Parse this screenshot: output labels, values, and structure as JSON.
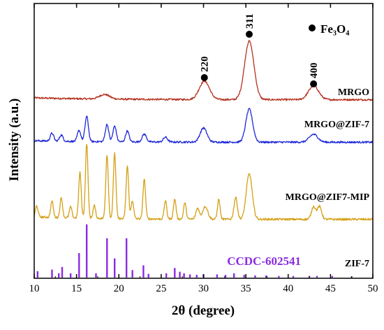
{
  "chart_data": {
    "type": "line",
    "xlabel": "2θ (degree)",
    "ylabel": "Intensity (a.u.)",
    "xlim": [
      10,
      50
    ],
    "x_ticks": [
      "10",
      "15",
      "20",
      "25",
      "30",
      "35",
      "40",
      "45",
      "50"
    ],
    "legend_marker_label": "Fe₃O₄",
    "peak_markers": [
      {
        "x": 30.1,
        "label": "220"
      },
      {
        "x": 35.4,
        "label": "311"
      },
      {
        "x": 43.0,
        "label": "400"
      }
    ],
    "series": [
      {
        "name": "MRGO",
        "color": "#b5311f",
        "baseline": 0.1,
        "peaks": [
          [
            18.3,
            0.15,
            0.6
          ],
          [
            30.1,
            0.6,
            0.6
          ],
          [
            35.4,
            1.9,
            0.55
          ],
          [
            43.0,
            0.45,
            0.6
          ]
        ]
      },
      {
        "name": "MRGO@ZIF-7",
        "color": "#1e28d8",
        "baseline": 0.08,
        "peaks": [
          [
            12.1,
            0.25,
            0.2
          ],
          [
            13.2,
            0.2,
            0.2
          ],
          [
            15.3,
            0.35,
            0.2
          ],
          [
            16.2,
            0.8,
            0.2
          ],
          [
            18.6,
            0.55,
            0.2
          ],
          [
            19.5,
            0.5,
            0.2
          ],
          [
            21.0,
            0.35,
            0.2
          ],
          [
            23.0,
            0.25,
            0.25
          ],
          [
            25.5,
            0.15,
            0.25
          ],
          [
            30.0,
            0.45,
            0.4
          ],
          [
            35.4,
            1.05,
            0.4
          ],
          [
            43.0,
            0.25,
            0.5
          ]
        ]
      },
      {
        "name": "MRGO@ZIF7-MIP",
        "color": "#d4a017",
        "baseline": 0.12,
        "peaks": [
          [
            10.3,
            0.3,
            0.15
          ],
          [
            12.1,
            0.45,
            0.15
          ],
          [
            13.2,
            0.55,
            0.15
          ],
          [
            14.3,
            0.3,
            0.15
          ],
          [
            15.4,
            1.25,
            0.15
          ],
          [
            16.2,
            2.05,
            0.15
          ],
          [
            17.1,
            0.35,
            0.15
          ],
          [
            18.6,
            1.75,
            0.15
          ],
          [
            19.5,
            1.8,
            0.15
          ],
          [
            21.0,
            1.45,
            0.15
          ],
          [
            21.6,
            0.5,
            0.15
          ],
          [
            23.0,
            1.1,
            0.15
          ],
          [
            25.5,
            0.5,
            0.15
          ],
          [
            26.6,
            0.55,
            0.15
          ],
          [
            27.8,
            0.45,
            0.15
          ],
          [
            29.3,
            0.3,
            0.2
          ],
          [
            30.2,
            0.35,
            0.3
          ],
          [
            31.8,
            0.55,
            0.15
          ],
          [
            33.8,
            0.6,
            0.2
          ],
          [
            35.4,
            1.25,
            0.35
          ],
          [
            43.0,
            0.35,
            0.25
          ],
          [
            43.7,
            0.35,
            0.25
          ]
        ]
      },
      {
        "name": "ZIF-7",
        "color": "#8a2be2",
        "reference_label": "CCDC-602541",
        "sticks": [
          [
            10.4,
            0.12
          ],
          [
            12.1,
            0.15
          ],
          [
            12.9,
            0.08
          ],
          [
            13.3,
            0.2
          ],
          [
            14.3,
            0.08
          ],
          [
            15.3,
            0.46
          ],
          [
            16.2,
            1.0
          ],
          [
            17.3,
            0.08
          ],
          [
            18.6,
            0.74
          ],
          [
            19.5,
            0.36
          ],
          [
            20.9,
            0.74
          ],
          [
            21.6,
            0.14
          ],
          [
            22.9,
            0.23
          ],
          [
            23.5,
            0.07
          ],
          [
            25.6,
            0.08
          ],
          [
            26.6,
            0.18
          ],
          [
            27.2,
            0.11
          ],
          [
            27.7,
            0.08
          ],
          [
            28.4,
            0.06
          ],
          [
            29.2,
            0.05
          ],
          [
            30.0,
            0.06
          ],
          [
            31.6,
            0.06
          ],
          [
            32.6,
            0.05
          ],
          [
            33.6,
            0.08
          ],
          [
            34.8,
            0.05
          ],
          [
            36.1,
            0.04
          ],
          [
            37.4,
            0.04
          ],
          [
            38.9,
            0.03
          ],
          [
            40.6,
            0.03
          ],
          [
            42.5,
            0.03
          ],
          [
            43.4,
            0.03
          ],
          [
            45.2,
            0.03
          ],
          [
            47.5,
            0.02
          ]
        ]
      }
    ]
  }
}
